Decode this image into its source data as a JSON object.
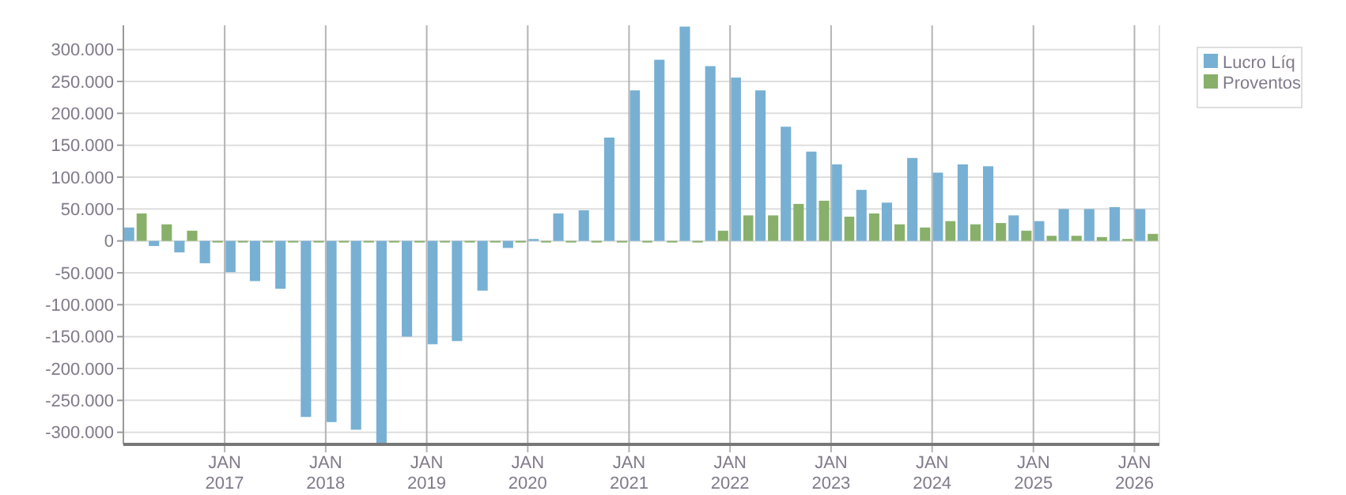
{
  "chart_data": {
    "type": "bar",
    "x": [
      "2016-02-15",
      "2016-05-15",
      "2016-08-15",
      "2016-11-15",
      "2017-02-15",
      "2017-05-15",
      "2017-08-15",
      "2017-11-15",
      "2018-02-15",
      "2018-05-15",
      "2018-08-15",
      "2018-11-15",
      "2019-02-15",
      "2019-05-15",
      "2019-08-15",
      "2019-11-15",
      "2020-02-15",
      "2020-05-15",
      "2020-08-15",
      "2020-11-15",
      "2021-02-15",
      "2021-05-15",
      "2021-08-15",
      "2021-11-15",
      "2022-02-15",
      "2022-05-15",
      "2022-08-15",
      "2022-11-15",
      "2023-02-15",
      "2023-05-15",
      "2023-08-15",
      "2023-11-15",
      "2024-02-15",
      "2024-05-15",
      "2024-08-15",
      "2024-11-15",
      "2025-02-15",
      "2025-05-15",
      "2025-08-15",
      "2025-11-15",
      "2026-02-15"
    ],
    "series": [
      {
        "name": "Lucro Líq",
        "color": "#77b0d3",
        "values": [
          21000,
          -8000,
          -18000,
          -35000,
          -49000,
          -63000,
          -75000,
          -276000,
          -284000,
          -296000,
          -317000,
          -150000,
          -162000,
          -157000,
          -78000,
          -11000,
          3000,
          43000,
          48000,
          162000,
          236000,
          284000,
          336000,
          274000,
          256000,
          236000,
          179000,
          140000,
          120000,
          80000,
          60000,
          130000,
          107000,
          120000,
          117000,
          40000,
          31000,
          50000,
          50000,
          53000,
          50000
        ]
      },
      {
        "name": "Proventos",
        "color": "#88b06a",
        "values": [
          43000,
          26000,
          16000,
          0,
          0,
          0,
          0,
          0,
          0,
          0,
          0,
          0,
          0,
          0,
          0,
          0,
          0,
          0,
          0,
          0,
          0,
          0,
          0,
          16000,
          40000,
          40000,
          58000,
          63000,
          38000,
          43000,
          26000,
          21000,
          31000,
          26000,
          28000,
          16000,
          8000,
          8000,
          6000,
          3000,
          11000
        ]
      }
    ],
    "xlim": [
      "2016-01",
      "2026-04"
    ],
    "xticks": [
      {
        "value": "2017-01",
        "label": "JAN 2017"
      },
      {
        "value": "2018-01",
        "label": "JAN 2018"
      },
      {
        "value": "2019-01",
        "label": "JAN 2019"
      },
      {
        "value": "2020-01",
        "label": "JAN 2020"
      },
      {
        "value": "2021-01",
        "label": "JAN 2021"
      },
      {
        "value": "2022-01",
        "label": "JAN 2022"
      },
      {
        "value": "2023-01",
        "label": "JAN 2023"
      },
      {
        "value": "2024-01",
        "label": "JAN 2024"
      },
      {
        "value": "2025-01",
        "label": "JAN 2025"
      },
      {
        "value": "2026-01",
        "label": "JAN 2026"
      }
    ],
    "ylim": [
      -319000,
      338000
    ],
    "yticks": [
      {
        "value": -300000,
        "label": "-300.000"
      },
      {
        "value": -250000,
        "label": "-250.000"
      },
      {
        "value": -200000,
        "label": "-200.000"
      },
      {
        "value": -150000,
        "label": "-150.000"
      },
      {
        "value": -100000,
        "label": "-100.000"
      },
      {
        "value": -50000,
        "label": "-50.000"
      },
      0,
      {
        "value": 50000,
        "label": "50.000"
      },
      {
        "value": 100000,
        "label": "100.000"
      },
      {
        "value": 150000,
        "label": "150.000"
      },
      {
        "value": 200000,
        "label": "200.000"
      },
      {
        "value": 250000,
        "label": "250.000"
      },
      {
        "value": 300000,
        "label": "300.000"
      }
    ],
    "grid": true,
    "legend": "top right"
  }
}
